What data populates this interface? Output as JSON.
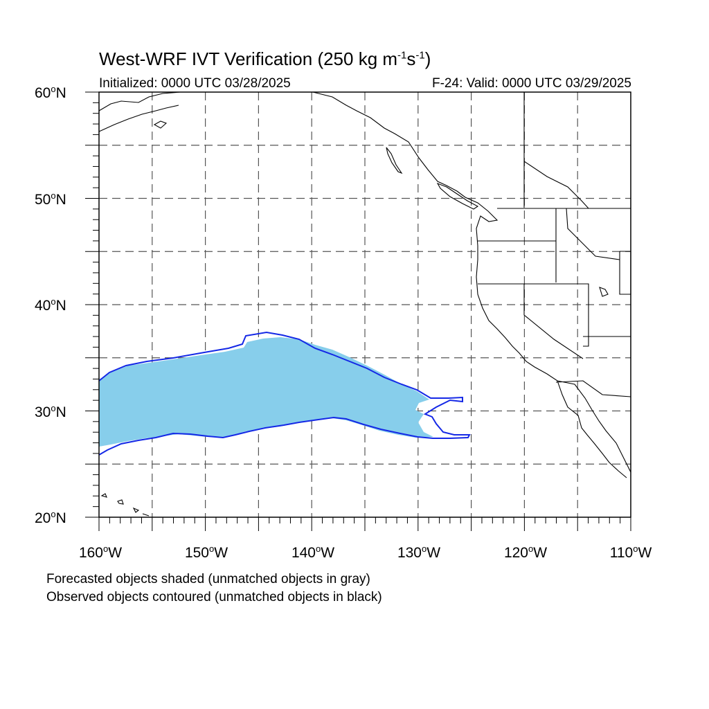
{
  "title": {
    "text": "West-WRF IVT Verification (250 kg m",
    "exp1": "-1",
    "mid": "s",
    "exp2": "-1",
    "close": ")"
  },
  "subtitle": {
    "initialized": "Initialized: 0000 UTC 03/28/2025",
    "valid": "F-24: Valid: 0000 UTC 03/29/2025"
  },
  "axes": {
    "lat_labels": [
      {
        "num": "60",
        "dir": "N"
      },
      {
        "num": "50",
        "dir": "N"
      },
      {
        "num": "40",
        "dir": "N"
      },
      {
        "num": "30",
        "dir": "N"
      },
      {
        "num": "20",
        "dir": "N"
      }
    ],
    "lon_labels": [
      {
        "num": "160",
        "dir": "W"
      },
      {
        "num": "150",
        "dir": "W"
      },
      {
        "num": "140",
        "dir": "W"
      },
      {
        "num": "130",
        "dir": "W"
      },
      {
        "num": "120",
        "dir": "W"
      },
      {
        "num": "110",
        "dir": "W"
      }
    ],
    "deg_symbol": "o",
    "lat_range": [
      20,
      60
    ],
    "lon_range": [
      -160,
      -110
    ],
    "grid_step_deg": 5
  },
  "legend": {
    "line1": "Forecasted objects shaded (unmatched objects in gray)",
    "line2": "Observed objects contoured (unmatched objects in black)"
  },
  "colors": {
    "forecast_fill": "#87ceeb",
    "observed_contour": "#1428e6",
    "coastline": "#000000",
    "grid": "#555555"
  }
}
